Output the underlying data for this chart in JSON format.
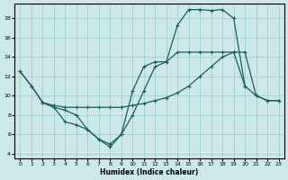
{
  "xlabel": "Humidex (Indice chaleur)",
  "bg_color": "#cce8e8",
  "grid_color": "#99cccc",
  "line_color": "#1a5f5f",
  "xlim": [
    -0.5,
    23.5
  ],
  "ylim": [
    3.5,
    19.5
  ],
  "yticks": [
    4,
    6,
    8,
    10,
    12,
    14,
    16,
    18
  ],
  "xticks": [
    0,
    1,
    2,
    3,
    4,
    5,
    6,
    7,
    8,
    9,
    10,
    11,
    12,
    13,
    14,
    15,
    16,
    17,
    18,
    19,
    20,
    21,
    22,
    23
  ],
  "line1_x": [
    0,
    1,
    2,
    3,
    4,
    5,
    6,
    7,
    8,
    9,
    10,
    11,
    12,
    13,
    14,
    15,
    16,
    17,
    18,
    19,
    20,
    21,
    22,
    23
  ],
  "line1_y": [
    12.5,
    11.0,
    9.3,
    9.0,
    8.8,
    8.8,
    8.8,
    8.8,
    8.8,
    8.8,
    9.0,
    9.2,
    9.5,
    9.8,
    10.3,
    11.0,
    12.0,
    13.0,
    14.0,
    14.5,
    14.5,
    10.0,
    9.5,
    9.5
  ],
  "line2_x": [
    0,
    1,
    2,
    3,
    4,
    5,
    6,
    7,
    8,
    9,
    10,
    11,
    12,
    13,
    14,
    15,
    16,
    17,
    18,
    19,
    20,
    21,
    22,
    23
  ],
  "line2_y": [
    12.5,
    11.0,
    9.3,
    8.8,
    7.3,
    7.0,
    6.5,
    5.5,
    4.7,
    6.0,
    8.0,
    10.5,
    13.0,
    13.5,
    17.3,
    18.9,
    18.9,
    18.8,
    18.9,
    18.0,
    11.0,
    10.0,
    9.5,
    9.5
  ],
  "line3_x": [
    2,
    3,
    4,
    5,
    6,
    7,
    8,
    9,
    10,
    11,
    12,
    13,
    14,
    15,
    16,
    17,
    18,
    19,
    20
  ],
  "line3_y": [
    9.3,
    8.8,
    8.5,
    8.0,
    6.5,
    5.5,
    5.0,
    6.0,
    10.5,
    13.0,
    13.5,
    13.5,
    14.5,
    14.5,
    14.5,
    14.5,
    14.5,
    14.5,
    11.0
  ]
}
